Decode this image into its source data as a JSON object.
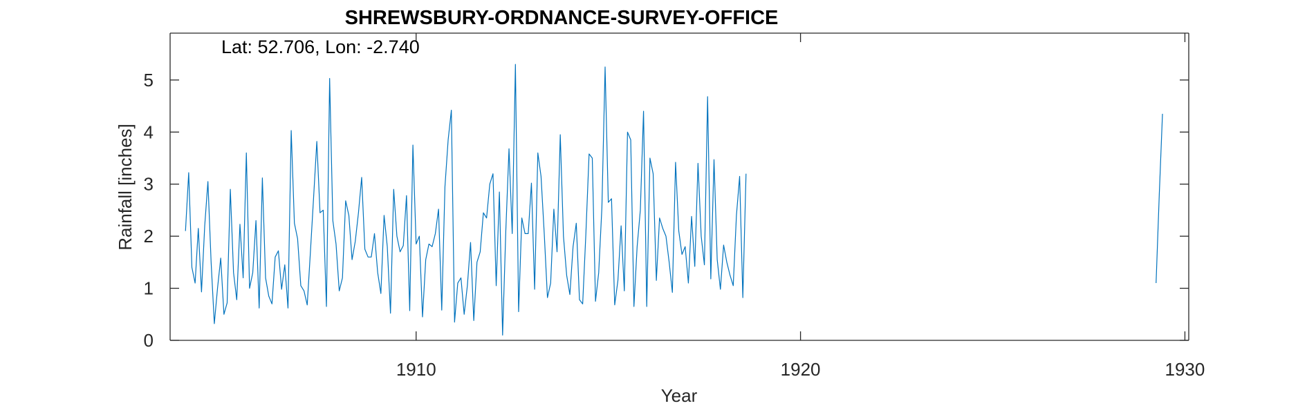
{
  "chart_data": {
    "type": "line",
    "title": "SHREWSBURY-ORDNANCE-SURVEY-OFFICE",
    "xlabel": "Year",
    "ylabel": "Rainfall [inches]",
    "annotation": "Lat: 52.706, Lon: -2.740",
    "xlim": [
      1903.6,
      1930.1
    ],
    "ylim": [
      0,
      5.9
    ],
    "xticks": [
      1910,
      1920,
      1930
    ],
    "yticks": [
      0,
      1,
      2,
      3,
      4,
      5
    ],
    "grid": false,
    "line_color": "#0072BD",
    "series": [
      {
        "x_start": 1904.0,
        "x_step": 0.08333,
        "values": [
          2.1,
          3.22,
          1.4,
          1.1,
          2.15,
          0.93,
          2.2,
          3.05,
          1.5,
          0.32,
          1.0,
          1.58,
          0.5,
          0.72,
          2.9,
          1.3,
          0.78,
          2.23,
          1.2,
          3.6,
          1.0,
          1.3,
          2.3,
          0.62,
          3.12,
          1.2,
          0.85,
          0.7,
          1.6,
          1.72,
          0.98,
          1.45,
          0.62,
          4.03,
          2.25,
          1.95,
          1.05,
          0.95,
          0.68,
          1.7,
          2.75,
          3.82,
          2.45,
          2.5,
          0.65,
          5.03,
          2.3,
          1.85,
          0.95,
          1.2,
          2.68,
          2.4,
          1.55,
          1.9,
          2.45,
          3.13,
          1.75,
          1.6,
          1.6,
          2.05,
          1.3,
          0.9,
          2.4,
          1.8,
          0.52,
          2.9,
          2.0,
          1.7,
          1.82,
          2.78,
          0.57,
          3.75,
          1.85,
          2.0,
          0.45,
          1.55,
          1.85,
          1.8,
          2.05,
          2.52,
          0.58,
          2.95,
          3.85,
          4.42,
          0.35,
          1.1,
          1.2,
          0.5,
          1.05,
          1.88,
          0.38,
          1.5,
          1.7,
          2.45,
          2.35,
          3.0,
          3.2,
          1.05,
          2.85,
          0.1,
          2.1,
          3.68,
          2.05,
          5.3,
          0.55,
          2.35,
          2.05,
          2.05,
          3.02,
          0.98,
          3.6,
          3.15,
          2.05,
          0.82,
          1.1,
          2.52,
          1.7,
          3.95,
          2.0,
          1.25,
          0.88,
          1.8,
          2.25,
          0.78,
          0.7,
          2.05,
          3.58,
          3.5,
          0.75,
          1.3,
          2.55,
          5.25,
          2.65,
          2.72,
          0.68,
          1.15,
          2.2,
          0.95,
          4.0,
          3.85,
          0.65,
          1.8,
          2.5,
          4.4,
          0.65,
          3.5,
          3.2,
          1.15,
          2.35,
          2.15,
          2.0,
          1.5,
          0.92,
          3.42,
          2.1,
          1.65,
          1.8,
          1.1,
          2.38,
          1.42,
          3.4,
          2.0,
          1.45,
          4.68,
          1.18,
          3.47,
          1.55,
          0.98,
          1.83,
          1.5,
          1.25,
          1.05,
          2.4,
          3.15,
          0.82,
          3.2
        ]
      },
      {
        "x_start": 1929.25,
        "x_step": 0.08333,
        "values": [
          1.1,
          2.8,
          4.35
        ]
      }
    ]
  }
}
